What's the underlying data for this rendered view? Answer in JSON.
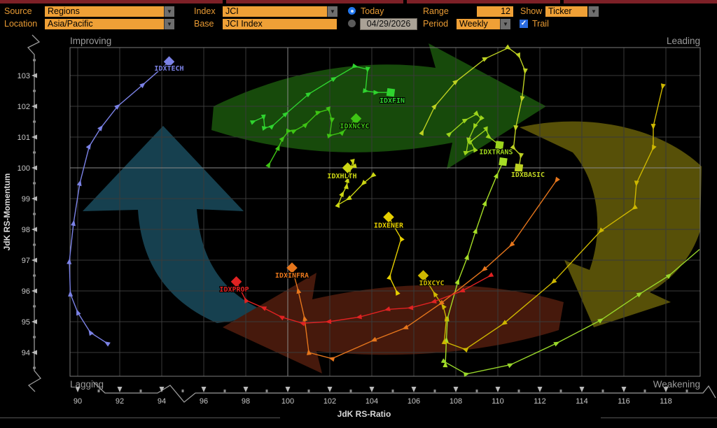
{
  "toolbar": {
    "source_label": "Source",
    "source_value": "Regions",
    "location_label": "Location",
    "location_value": "Asia/Pacific",
    "index_label": "Index",
    "index_value": "JCI",
    "base_label": "Base",
    "base_value": "JCI Index",
    "today_label": "Today",
    "date_value": "04/29/2026",
    "range_label": "Range",
    "range_value": "12",
    "period_label": "Period",
    "period_value": "Weekly",
    "show_label": "Show",
    "show_value": "Ticker",
    "trail_label": "Trail",
    "dropdown_arrow": "▼",
    "check_glyph": "✓",
    "accent_orange": "#efa036",
    "accent_blue": "#2a6be0"
  },
  "chart_data": {
    "type": "scatter",
    "xlabel": "JdK RS-Ratio",
    "ylabel": "JdK RS-Momentum",
    "xlim": [
      89.6,
      119.6
    ],
    "ylim": [
      93.2,
      103.9
    ],
    "x_ticks": [
      90,
      92,
      94,
      96,
      98,
      100,
      102,
      104,
      106,
      108,
      110,
      112,
      114,
      116,
      118
    ],
    "y_ticks": [
      94,
      95,
      96,
      97,
      98,
      99,
      100,
      101,
      102,
      103
    ],
    "reference_x": 100,
    "reference_y": 100,
    "grid_color": "#3a3a3a",
    "reference_color": "#8a8a8a",
    "border_color": "#7a7a7a",
    "quadrants": {
      "top_left": "Improving",
      "top_right": "Leading",
      "bottom_left": "Lagging",
      "bottom_right": "Weakening"
    },
    "rotation_arrows": {
      "up_color": "#16404f",
      "right_color": "#174a0b",
      "left_color": "#46190c",
      "down_color": "#575008"
    },
    "series": [
      {
        "ticker": "IDXTECH",
        "color": "#7b82e6",
        "marker": "diamond",
        "label_dx": 0,
        "label_dy": 13,
        "points": [
          [
            91.4,
            94.3
          ],
          [
            90.6,
            94.65
          ],
          [
            90.0,
            95.3
          ],
          [
            89.65,
            95.9
          ],
          [
            89.6,
            96.95
          ],
          [
            89.8,
            98.2
          ],
          [
            90.1,
            99.5
          ],
          [
            90.55,
            100.7
          ],
          [
            91.1,
            101.3
          ],
          [
            91.9,
            102.0
          ],
          [
            93.1,
            102.7
          ],
          [
            94.35,
            103.45
          ]
        ]
      },
      {
        "ticker": "IDXFIN",
        "color": "#2fd32f",
        "marker": "square",
        "label_dx": 2,
        "label_dy": 15,
        "points": [
          [
            98.35,
            101.5
          ],
          [
            98.85,
            101.65
          ],
          [
            98.9,
            101.3
          ],
          [
            99.25,
            101.35
          ],
          [
            99.9,
            101.75
          ],
          [
            101.0,
            102.4
          ],
          [
            102.2,
            102.9
          ],
          [
            103.2,
            103.3
          ],
          [
            103.8,
            103.2
          ],
          [
            103.7,
            102.5
          ],
          [
            104.2,
            102.45
          ],
          [
            104.9,
            102.45
          ]
        ]
      },
      {
        "ticker": "IDXNCYC",
        "color": "#3ec414",
        "marker": "diamond",
        "label_dx": -2,
        "label_dy": 14,
        "points": [
          [
            99.1,
            100.1
          ],
          [
            99.55,
            100.65
          ],
          [
            99.75,
            100.95
          ],
          [
            100.05,
            101.2
          ],
          [
            100.3,
            101.2
          ],
          [
            100.85,
            101.4
          ],
          [
            101.45,
            101.8
          ],
          [
            101.95,
            101.9
          ],
          [
            102.1,
            101.55
          ],
          [
            102.0,
            101.05
          ],
          [
            102.6,
            101.15
          ],
          [
            103.25,
            101.6
          ]
        ]
      },
      {
        "ticker": "IDXTRANS",
        "color": "#9cd41c",
        "marker": "square",
        "label_dx": -5,
        "label_dy": 13,
        "points": [
          [
            107.7,
            101.1
          ],
          [
            108.45,
            101.55
          ],
          [
            109.0,
            101.75
          ],
          [
            109.2,
            101.6
          ],
          [
            108.9,
            101.35
          ],
          [
            108.6,
            100.9
          ],
          [
            108.5,
            100.5
          ],
          [
            108.9,
            100.6
          ],
          [
            108.7,
            100.85
          ],
          [
            109.45,
            101.25
          ],
          [
            109.58,
            101.0
          ],
          [
            110.08,
            100.74
          ]
        ]
      },
      {
        "ticker": "",
        "color": "#a6de26",
        "marker": "square",
        "label_dx": 0,
        "label_dy": 0,
        "points": [
          [
            107.5,
            93.6
          ],
          [
            107.55,
            94.4
          ],
          [
            107.6,
            95.1
          ],
          [
            108.1,
            96.3
          ],
          [
            108.55,
            97.1
          ],
          [
            108.95,
            97.95
          ],
          [
            109.4,
            98.85
          ],
          [
            109.95,
            99.75
          ],
          [
            110.25,
            100.2
          ]
        ]
      },
      {
        "ticker": "IDXBASIC",
        "color": "#bdd122",
        "marker": "square",
        "label_dx": 13,
        "label_dy": 13,
        "points": [
          [
            106.4,
            101.15
          ],
          [
            107.0,
            102.0
          ],
          [
            108.0,
            102.8
          ],
          [
            109.4,
            103.55
          ],
          [
            110.5,
            103.9
          ],
          [
            111.0,
            103.65
          ],
          [
            111.3,
            103.15
          ],
          [
            111.15,
            102.25
          ],
          [
            110.85,
            101.3
          ],
          [
            110.75,
            100.65
          ],
          [
            111.1,
            100.4
          ],
          [
            111.0,
            100.0
          ]
        ]
      },
      {
        "ticker": "IDXHLTH",
        "color": "#ccd614",
        "marker": "diamond",
        "label_dx": -8,
        "label_dy": 15,
        "points": [
          [
            104.05,
            99.75
          ],
          [
            103.6,
            99.5
          ],
          [
            102.9,
            99.0
          ],
          [
            102.4,
            98.8
          ],
          [
            102.6,
            99.15
          ],
          [
            102.8,
            99.4
          ],
          [
            102.85,
            99.6
          ],
          [
            103.1,
            100.2
          ],
          [
            103.15,
            100.05
          ],
          [
            102.85,
            100.0
          ]
        ]
      },
      {
        "ticker": "IDXENER",
        "color": "#e6cf00",
        "marker": "diamond",
        "label_dx": 0,
        "label_dy": 15,
        "points": [
          [
            105.2,
            95.95
          ],
          [
            104.85,
            96.45
          ],
          [
            105.4,
            97.7
          ],
          [
            104.8,
            98.4
          ]
        ]
      },
      {
        "ticker": "IDXCYC",
        "color": "#cdb700",
        "marker": "diamond",
        "label_dx": 12,
        "label_dy": 14,
        "points": [
          [
            117.85,
            102.65
          ],
          [
            117.4,
            101.35
          ],
          [
            117.4,
            100.65
          ],
          [
            116.6,
            99.5
          ],
          [
            116.5,
            98.7
          ],
          [
            114.9,
            97.95
          ],
          [
            112.65,
            96.3
          ],
          [
            110.3,
            94.95
          ],
          [
            108.45,
            94.1
          ],
          [
            107.45,
            94.35
          ],
          [
            107.55,
            95.1
          ],
          [
            107.4,
            95.5
          ],
          [
            107.0,
            95.9
          ],
          [
            106.45,
            96.5
          ]
        ]
      },
      {
        "ticker": "IDXINFRA",
        "color": "#e6761c",
        "marker": "diamond",
        "label_dx": 0,
        "label_dy": 14,
        "points": [
          [
            112.8,
            99.6
          ],
          [
            110.65,
            97.5
          ],
          [
            109.35,
            96.7
          ],
          [
            107.3,
            95.6
          ],
          [
            105.6,
            94.8
          ],
          [
            104.1,
            94.4
          ],
          [
            102.1,
            93.8
          ],
          [
            101.0,
            94.0
          ],
          [
            100.8,
            95.1
          ],
          [
            100.5,
            96.0
          ],
          [
            100.2,
            96.75
          ]
        ]
      },
      {
        "ticker": "IDXPROP",
        "color": "#e02222",
        "marker": "diamond",
        "label_dx": -3,
        "label_dy": 14,
        "points": [
          [
            109.65,
            96.5
          ],
          [
            108.3,
            96.0
          ],
          [
            106.95,
            95.65
          ],
          [
            105.85,
            95.45
          ],
          [
            104.75,
            95.4
          ],
          [
            103.4,
            95.15
          ],
          [
            101.95,
            95.0
          ],
          [
            100.7,
            94.95
          ],
          [
            99.7,
            95.15
          ],
          [
            98.85,
            95.45
          ],
          [
            98.0,
            95.7
          ],
          [
            97.55,
            96.3
          ]
        ]
      },
      {
        "ticker": "",
        "color": "#98d62a",
        "marker": "none",
        "label_dx": 0,
        "label_dy": 0,
        "points": [
          [
            107.45,
            93.7
          ],
          [
            108.5,
            93.3
          ],
          [
            110.6,
            93.6
          ],
          [
            112.8,
            94.3
          ],
          [
            114.9,
            95.05
          ],
          [
            116.75,
            95.9
          ],
          [
            118.15,
            96.5
          ],
          [
            119.6,
            97.35
          ]
        ]
      }
    ]
  }
}
